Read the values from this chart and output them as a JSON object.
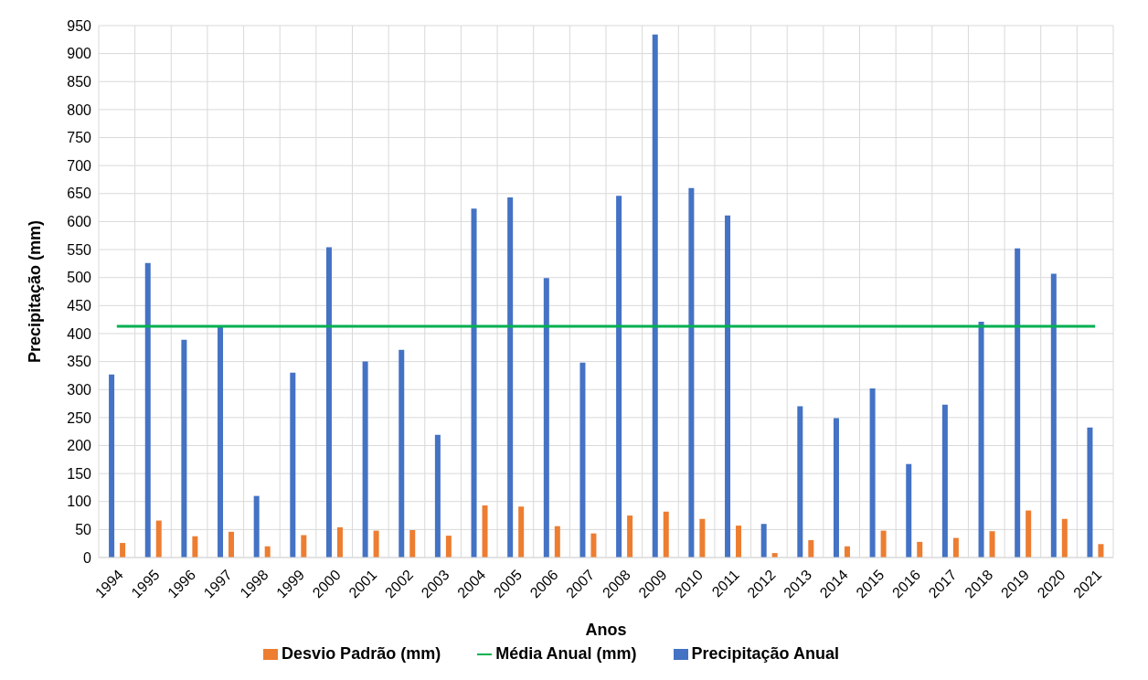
{
  "chart_data": {
    "type": "bar",
    "xlabel": "Anos",
    "ylabel": "Precipitação (mm)",
    "categories": [
      "1994",
      "1995",
      "1996",
      "1997",
      "1998",
      "1999",
      "2000",
      "2001",
      "2002",
      "2003",
      "2004",
      "2005",
      "2006",
      "2007",
      "2008",
      "2009",
      "2010",
      "2011",
      "2012",
      "2013",
      "2014",
      "2015",
      "2016",
      "2017",
      "2018",
      "2019",
      "2020",
      "2021"
    ],
    "series": [
      {
        "name": "Precipitação Anual",
        "color": "#4472c4",
        "values": [
          327,
          526,
          389,
          412,
          110,
          330,
          554,
          350,
          371,
          219,
          623,
          643,
          499,
          348,
          646,
          934,
          660,
          611,
          60,
          270,
          249,
          302,
          167,
          273,
          421,
          552,
          507,
          232
        ]
      },
      {
        "name": "Desvio Padrão (mm)",
        "color": "#ed7d31",
        "values": [
          26,
          66,
          38,
          46,
          20,
          40,
          54,
          48,
          49,
          39,
          93,
          91,
          56,
          43,
          75,
          82,
          69,
          57,
          8,
          31,
          20,
          48,
          28,
          35,
          47,
          84,
          69,
          24
        ]
      },
      {
        "name": "Média Anual (mm)",
        "type": "line",
        "color": "#00b050",
        "values": [
          413,
          413,
          413,
          413,
          413,
          413,
          413,
          413,
          413,
          413,
          413,
          413,
          413,
          413,
          413,
          413,
          413,
          413,
          413,
          413,
          413,
          413,
          413,
          413,
          413,
          413,
          413,
          413
        ]
      }
    ],
    "ylim": [
      0,
      950
    ],
    "yticks": [
      0,
      50,
      100,
      150,
      200,
      250,
      300,
      350,
      400,
      450,
      500,
      550,
      600,
      650,
      700,
      750,
      800,
      850,
      900,
      950
    ],
    "grid": true,
    "legend": "bottom",
    "marker": "none",
    "line_style": "solid"
  }
}
